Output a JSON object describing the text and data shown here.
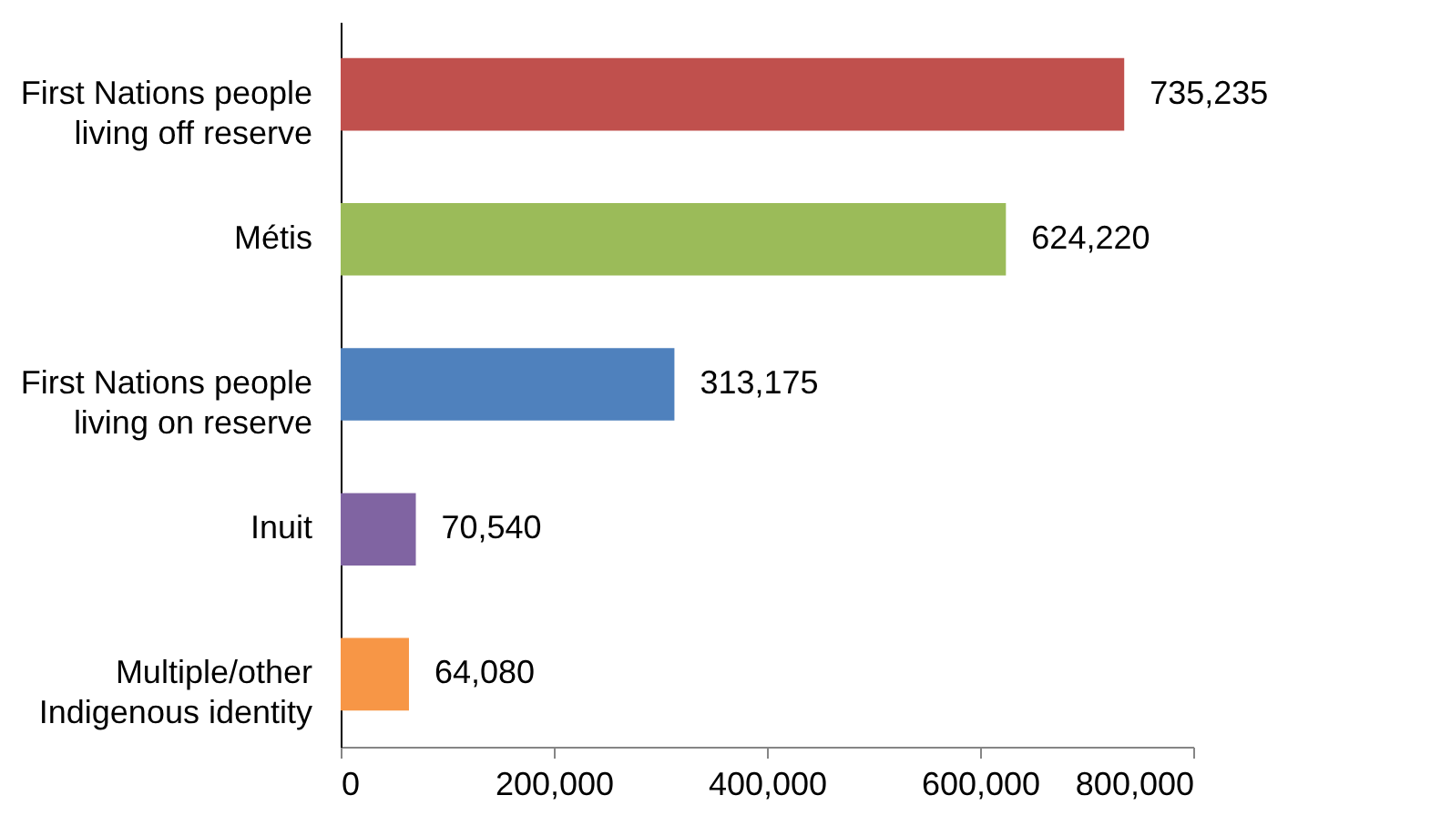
{
  "chart_data": {
    "type": "bar",
    "orientation": "horizontal",
    "categories": [
      "First Nations people living off reserve",
      "Métis",
      "First Nations people living on reserve",
      "Inuit",
      "Multiple/other Indigenous identity"
    ],
    "values": [
      735235,
      624220,
      313175,
      70540,
      64080
    ],
    "value_labels": [
      "735,235",
      "624,220",
      "313,175",
      "70,540",
      "64,080"
    ],
    "colors": [
      "#c0504d",
      "#9bbb59",
      "#4f81bd",
      "#8064a2",
      "#f79646"
    ],
    "xlim": [
      0,
      800000
    ],
    "xticks": [
      0,
      {
        "value": 200000,
        "label": "200,000"
      },
      {
        "value": 400000,
        "label": "400,000"
      },
      {
        "value": 600000,
        "label": "600,000"
      },
      {
        "value": 800000,
        "label": "800,000"
      }
    ],
    "grid": false
  }
}
